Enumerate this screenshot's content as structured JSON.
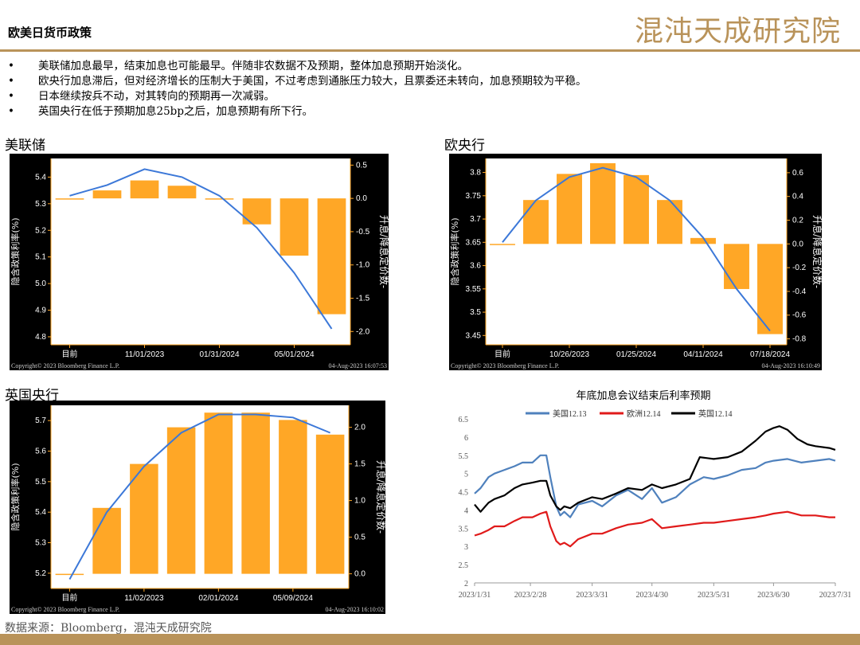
{
  "page": {
    "title": "欧美日货币政策",
    "logo": "混沌天成研究院",
    "bullets": [
      "美联储加息最早，结束加息也可能最早。伴随非农数据不及预期，整体加息预期开始淡化。",
      "欧央行加息滞后，但对经济增长的压制大于美国，不过考虑到通胀压力较大，且票委还未转向，加息预期较为平稳。",
      "日本继续按兵不动，对其转向的预期再一次减弱。",
      "英国央行在低于预期加息25bp之后，加息预期有所下行。"
    ],
    "source": "数据来源：Bloomberg，混沌天成研究院"
  },
  "colors": {
    "bar": "#ffa726",
    "curve": "#3c78d8",
    "panel_bg": "#000000",
    "accent": "#b9935a",
    "us": "#4f81bd",
    "eu": "#e01a1a",
    "uk": "#000000"
  },
  "chart_data": [
    {
      "type": "bar",
      "section_label": "美联储",
      "categories": [
        "目前",
        "",
        "11/01/2023",
        "",
        "01/31/2024",
        "",
        "05/01/2024",
        ""
      ],
      "bar_values": [
        0.0,
        0.12,
        0.27,
        0.19,
        0.0,
        -0.39,
        -0.86,
        -1.74
      ],
      "curve_values": [
        5.33,
        5.37,
        5.43,
        5.4,
        5.33,
        5.21,
        5.04,
        4.83
      ],
      "ylabel_left": "隐含政策利率(%)",
      "ylabel_right": "升息/降息定价数-",
      "left_ticks": [
        4.8,
        4.9,
        5.0,
        5.1,
        5.2,
        5.3,
        5.4
      ],
      "left_range": [
        4.77,
        5.47
      ],
      "right_ticks": [
        -2.0,
        -1.5,
        -1.0,
        -0.5,
        0.0,
        0.5
      ],
      "right_range": [
        -2.2,
        0.6
      ],
      "x_ticks": [
        {
          "i": 0,
          "label": "目前"
        },
        {
          "i": 2,
          "label": "11/01/2023"
        },
        {
          "i": 4,
          "label": "01/31/2024"
        },
        {
          "i": 6,
          "label": "05/01/2024"
        }
      ],
      "footer_left": "Copyright© 2023 Bloomberg Finance L.P.",
      "footer_right": "04-Aug-2023  16:07:53"
    },
    {
      "type": "bar",
      "section_label": "欧央行",
      "categories": [
        "目前",
        "",
        "10/26/2023",
        "",
        "01/25/2024",
        "",
        "04/11/2024",
        "",
        "07/18/2024"
      ],
      "bar_values": [
        0.0,
        0.37,
        0.59,
        0.68,
        0.58,
        0.37,
        0.05,
        -0.38,
        -0.76
      ],
      "curve_values": [
        3.65,
        3.74,
        3.79,
        3.81,
        3.79,
        3.74,
        3.66,
        3.55,
        3.46
      ],
      "ylabel_left": "隐含政策利率(%)",
      "ylabel_right": "升息/降息定价数-",
      "left_ticks": [
        3.45,
        3.5,
        3.55,
        3.6,
        3.65,
        3.7,
        3.75,
        3.8
      ],
      "left_range": [
        3.43,
        3.83
      ],
      "right_ticks": [
        -0.8,
        -0.6,
        -0.4,
        -0.2,
        0.0,
        0.2,
        0.4,
        0.6
      ],
      "right_range": [
        -0.85,
        0.72
      ],
      "x_ticks": [
        {
          "i": 0,
          "label": "目前"
        },
        {
          "i": 2,
          "label": "10/26/2023"
        },
        {
          "i": 4,
          "label": "01/25/2024"
        },
        {
          "i": 6,
          "label": "04/11/2024"
        },
        {
          "i": 8,
          "label": "07/18/2024"
        }
      ],
      "footer_left": "Copyright© 2023 Bloomberg Finance L.P.",
      "footer_right": "04-Aug-2023  16:10:49"
    },
    {
      "type": "bar",
      "section_label": "英国央行",
      "categories": [
        "目前",
        "",
        "11/02/2023",
        "",
        "02/01/2024",
        "",
        "05/09/2024",
        ""
      ],
      "bar_values": [
        0.0,
        0.9,
        1.5,
        2.0,
        2.2,
        2.2,
        2.1,
        1.9
      ],
      "curve_values": [
        5.18,
        5.4,
        5.55,
        5.66,
        5.72,
        5.72,
        5.71,
        5.66
      ],
      "ylabel_left": "隐含政策利率(%)",
      "ylabel_right": "升息/降息定价数-",
      "left_ticks": [
        5.2,
        5.3,
        5.4,
        5.5,
        5.6,
        5.7
      ],
      "left_range": [
        5.15,
        5.75
      ],
      "right_ticks": [
        0.0,
        0.5,
        1.0,
        1.5,
        2.0
      ],
      "right_range": [
        -0.2,
        2.3
      ],
      "x_ticks": [
        {
          "i": 0,
          "label": "目前"
        },
        {
          "i": 2,
          "label": "11/02/2023"
        },
        {
          "i": 4,
          "label": "02/01/2024"
        },
        {
          "i": 6,
          "label": "05/09/2024"
        }
      ],
      "footer_left": "Copyright© 2023 Bloomberg Finance L.P.",
      "footer_right": "04-Aug-2023  16:10:02"
    },
    {
      "type": "line",
      "title": "年底加息会议结束后利率预期",
      "legend_position": "top",
      "x_ticks": [
        "2023/1/31",
        "2023/2/28",
        "2023/3/31",
        "2023/4/30",
        "2023/5/31",
        "2023/6/30",
        "2023/7/31"
      ],
      "x_tick_dates": [
        "2023-01-31",
        "2023-02-28",
        "2023-03-31",
        "2023-04-30",
        "2023-05-31",
        "2023-06-30",
        "2023-07-31"
      ],
      "ylim": [
        2,
        6.5
      ],
      "y_ticks": [
        2,
        2.5,
        3,
        3.5,
        4,
        4.5,
        5,
        5.5,
        6,
        6.5
      ],
      "series": [
        {
          "name": "美国12.13",
          "color": "#4f81bd",
          "points": [
            [
              "2023-01-31",
              4.45
            ],
            [
              "2023-02-03",
              4.6
            ],
            [
              "2023-02-07",
              4.9
            ],
            [
              "2023-02-10",
              5.0
            ],
            [
              "2023-02-15",
              5.1
            ],
            [
              "2023-02-20",
              5.2
            ],
            [
              "2023-02-24",
              5.3
            ],
            [
              "2023-03-01",
              5.3
            ],
            [
              "2023-03-05",
              5.5
            ],
            [
              "2023-03-08",
              5.5
            ],
            [
              "2023-03-10",
              4.9
            ],
            [
              "2023-03-13",
              4.1
            ],
            [
              "2023-03-15",
              3.85
            ],
            [
              "2023-03-17",
              3.95
            ],
            [
              "2023-03-20",
              3.8
            ],
            [
              "2023-03-24",
              4.15
            ],
            [
              "2023-03-31",
              4.25
            ],
            [
              "2023-04-05",
              4.1
            ],
            [
              "2023-04-12",
              4.4
            ],
            [
              "2023-04-18",
              4.55
            ],
            [
              "2023-04-25",
              4.3
            ],
            [
              "2023-04-30",
              4.6
            ],
            [
              "2023-05-05",
              4.2
            ],
            [
              "2023-05-12",
              4.35
            ],
            [
              "2023-05-19",
              4.7
            ],
            [
              "2023-05-26",
              4.9
            ],
            [
              "2023-05-31",
              4.85
            ],
            [
              "2023-06-07",
              4.95
            ],
            [
              "2023-06-14",
              5.1
            ],
            [
              "2023-06-21",
              5.15
            ],
            [
              "2023-06-26",
              5.3
            ],
            [
              "2023-06-30",
              5.35
            ],
            [
              "2023-07-07",
              5.4
            ],
            [
              "2023-07-14",
              5.3
            ],
            [
              "2023-07-21",
              5.35
            ],
            [
              "2023-07-28",
              5.4
            ],
            [
              "2023-07-31",
              5.35
            ]
          ]
        },
        {
          "name": "欧洲12.14",
          "color": "#e01a1a",
          "points": [
            [
              "2023-01-31",
              3.3
            ],
            [
              "2023-02-03",
              3.35
            ],
            [
              "2023-02-07",
              3.45
            ],
            [
              "2023-02-10",
              3.55
            ],
            [
              "2023-02-15",
              3.55
            ],
            [
              "2023-02-20",
              3.7
            ],
            [
              "2023-02-24",
              3.8
            ],
            [
              "2023-03-01",
              3.8
            ],
            [
              "2023-03-05",
              3.9
            ],
            [
              "2023-03-08",
              3.95
            ],
            [
              "2023-03-10",
              3.55
            ],
            [
              "2023-03-13",
              3.15
            ],
            [
              "2023-03-15",
              3.05
            ],
            [
              "2023-03-17",
              3.1
            ],
            [
              "2023-03-20",
              3.0
            ],
            [
              "2023-03-24",
              3.2
            ],
            [
              "2023-03-31",
              3.35
            ],
            [
              "2023-04-05",
              3.35
            ],
            [
              "2023-04-12",
              3.5
            ],
            [
              "2023-04-18",
              3.6
            ],
            [
              "2023-04-25",
              3.65
            ],
            [
              "2023-04-30",
              3.75
            ],
            [
              "2023-05-05",
              3.5
            ],
            [
              "2023-05-12",
              3.55
            ],
            [
              "2023-05-19",
              3.6
            ],
            [
              "2023-05-26",
              3.65
            ],
            [
              "2023-05-31",
              3.65
            ],
            [
              "2023-06-07",
              3.7
            ],
            [
              "2023-06-14",
              3.75
            ],
            [
              "2023-06-21",
              3.8
            ],
            [
              "2023-06-26",
              3.85
            ],
            [
              "2023-06-30",
              3.9
            ],
            [
              "2023-07-07",
              3.95
            ],
            [
              "2023-07-14",
              3.85
            ],
            [
              "2023-07-21",
              3.85
            ],
            [
              "2023-07-28",
              3.8
            ],
            [
              "2023-07-31",
              3.8
            ]
          ]
        },
        {
          "name": "英国12.14",
          "color": "#000000",
          "points": [
            [
              "2023-01-31",
              4.15
            ],
            [
              "2023-02-03",
              3.95
            ],
            [
              "2023-02-07",
              4.2
            ],
            [
              "2023-02-10",
              4.3
            ],
            [
              "2023-02-15",
              4.4
            ],
            [
              "2023-02-20",
              4.6
            ],
            [
              "2023-02-24",
              4.7
            ],
            [
              "2023-03-01",
              4.75
            ],
            [
              "2023-03-05",
              4.8
            ],
            [
              "2023-03-08",
              4.8
            ],
            [
              "2023-03-10",
              4.4
            ],
            [
              "2023-03-13",
              4.1
            ],
            [
              "2023-03-15",
              4.0
            ],
            [
              "2023-03-17",
              4.1
            ],
            [
              "2023-03-20",
              4.05
            ],
            [
              "2023-03-24",
              4.2
            ],
            [
              "2023-03-31",
              4.35
            ],
            [
              "2023-04-05",
              4.3
            ],
            [
              "2023-04-12",
              4.45
            ],
            [
              "2023-04-18",
              4.6
            ],
            [
              "2023-04-25",
              4.55
            ],
            [
              "2023-04-30",
              4.7
            ],
            [
              "2023-05-05",
              4.6
            ],
            [
              "2023-05-12",
              4.7
            ],
            [
              "2023-05-19",
              4.85
            ],
            [
              "2023-05-24",
              5.45
            ],
            [
              "2023-05-31",
              5.4
            ],
            [
              "2023-06-07",
              5.45
            ],
            [
              "2023-06-14",
              5.6
            ],
            [
              "2023-06-21",
              5.9
            ],
            [
              "2023-06-26",
              6.15
            ],
            [
              "2023-06-30",
              6.25
            ],
            [
              "2023-07-03",
              6.3
            ],
            [
              "2023-07-07",
              6.2
            ],
            [
              "2023-07-12",
              5.95
            ],
            [
              "2023-07-17",
              5.8
            ],
            [
              "2023-07-21",
              5.75
            ],
            [
              "2023-07-28",
              5.7
            ],
            [
              "2023-07-31",
              5.65
            ]
          ]
        }
      ]
    }
  ]
}
